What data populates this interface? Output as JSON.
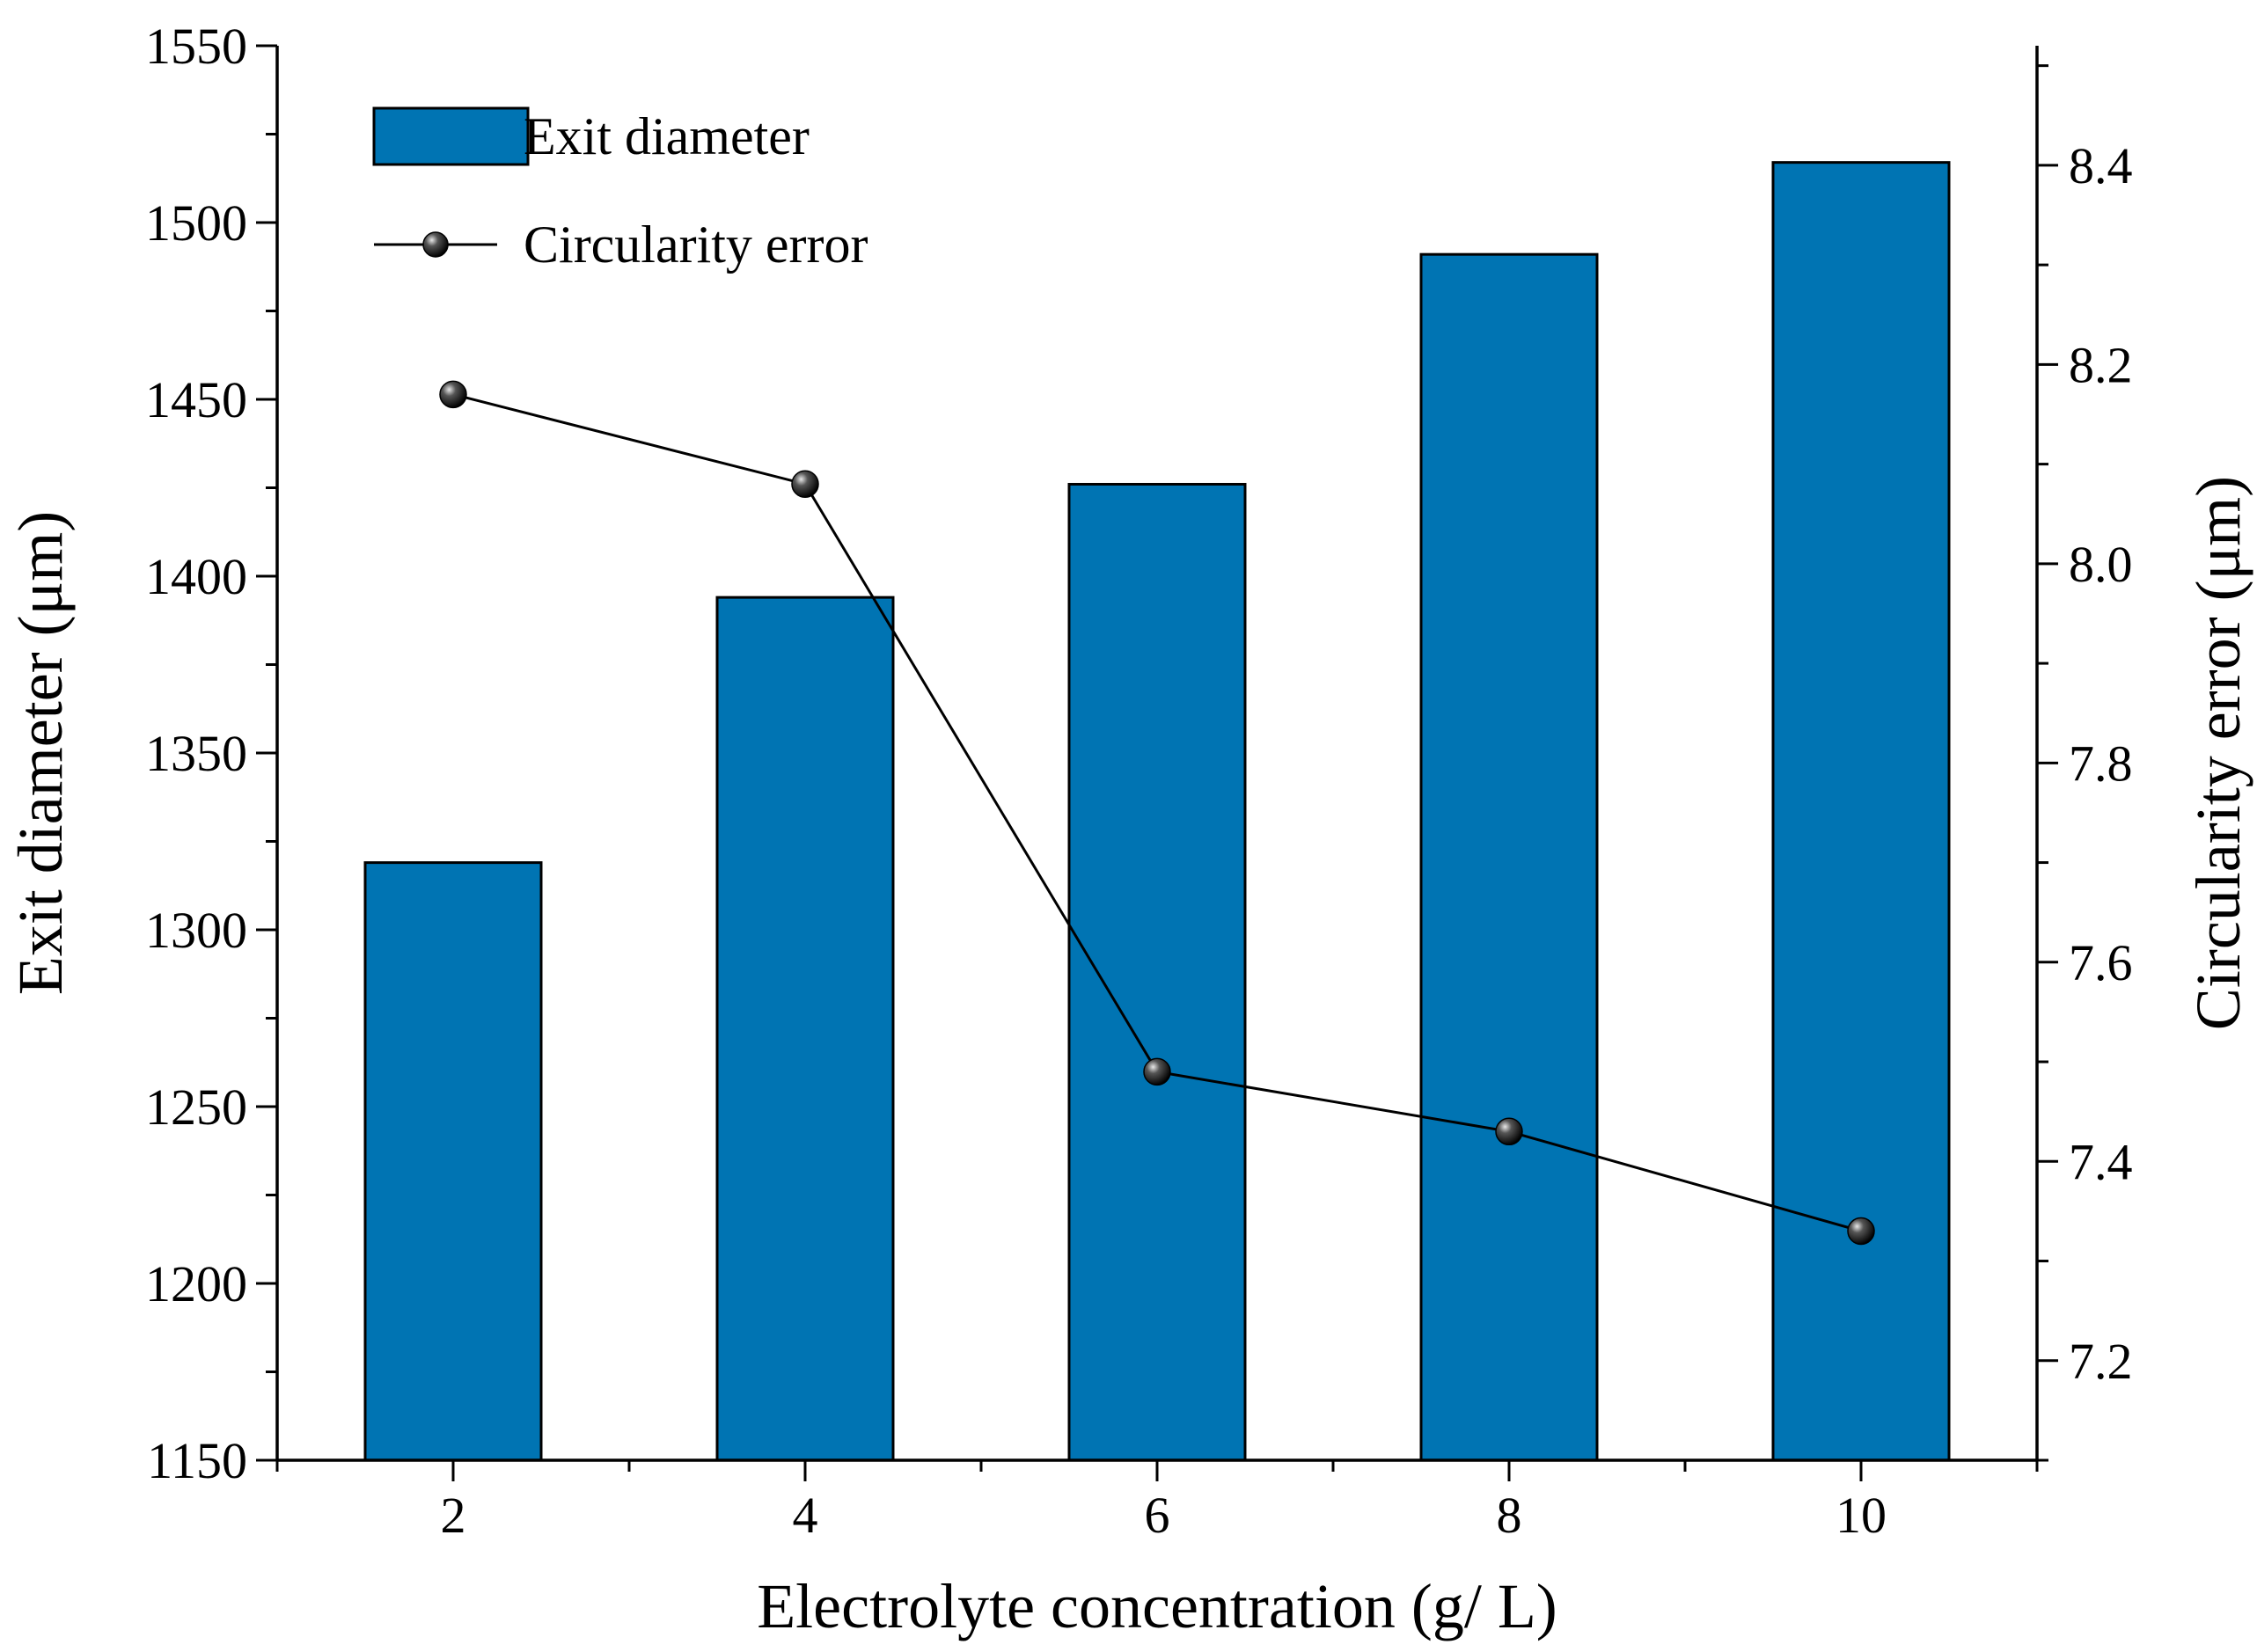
{
  "chart_data": {
    "type": "bar",
    "categories": [
      "2",
      "4",
      "6",
      "8",
      "10"
    ],
    "x": [
      2,
      4,
      6,
      8,
      10
    ],
    "xlabel": "Electrolyte concentration (g/ L)",
    "x_ticks": [
      "2",
      "4",
      "6",
      "8",
      "10"
    ],
    "xlim": [
      1,
      11
    ],
    "series": [
      {
        "name": "Exit diameter",
        "type": "bar",
        "axis": "left",
        "color": "#0074b3",
        "values": [
          1319,
          1394,
          1426,
          1491,
          1517
        ]
      },
      {
        "name": "Circularity error",
        "type": "line",
        "axis": "right",
        "color": "#000000",
        "marker": "sphere",
        "values": [
          8.17,
          8.08,
          7.49,
          7.43,
          7.33
        ]
      }
    ],
    "ylabel": "Exit diameter (μm)",
    "ylim": [
      1150,
      1550
    ],
    "y_ticks": [
      "1150",
      "1200",
      "1250",
      "1300",
      "1350",
      "1400",
      "1450",
      "1500",
      "1550"
    ],
    "y2label": "Circularity error (μm)",
    "y2lim": [
      7.1,
      8.52
    ],
    "y2_ticks": [
      "7.2",
      "7.4",
      "7.6",
      "7.8",
      "8.0",
      "8.2",
      "8.4"
    ],
    "legend": {
      "position": "top-left",
      "entries": [
        "Exit diameter",
        "Circularity error"
      ]
    },
    "grid": false
  }
}
